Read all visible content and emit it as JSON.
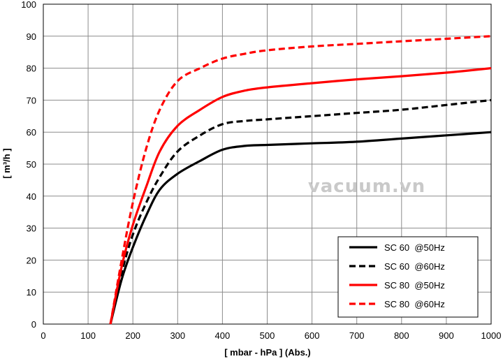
{
  "chart_data": {
    "type": "line",
    "xlabel": "[ mbar - hPa ]  (Abs.)",
    "ylabel": "[ m³/h ]",
    "xlim": [
      0,
      1000
    ],
    "ylim": [
      0,
      100
    ],
    "x_ticks": [
      0,
      100,
      200,
      300,
      400,
      500,
      600,
      700,
      800,
      900,
      1000
    ],
    "y_ticks": [
      0,
      10,
      20,
      30,
      40,
      50,
      60,
      70,
      80,
      90,
      100
    ],
    "grid": true,
    "legend_position": "bottom-right",
    "series": [
      {
        "name": "SC 60  @50Hz",
        "color": "#000000",
        "dash": "solid",
        "points": [
          [
            150,
            0
          ],
          [
            175,
            14
          ],
          [
            200,
            24
          ],
          [
            230,
            34
          ],
          [
            260,
            42
          ],
          [
            300,
            47
          ],
          [
            350,
            51
          ],
          [
            400,
            54.5
          ],
          [
            450,
            55.7
          ],
          [
            500,
            56
          ],
          [
            600,
            56.5
          ],
          [
            700,
            57
          ],
          [
            800,
            58
          ],
          [
            900,
            59
          ],
          [
            1000,
            60
          ]
        ]
      },
      {
        "name": "SC 60  @60Hz",
        "color": "#000000",
        "dash": "dashed",
        "points": [
          [
            150,
            0
          ],
          [
            175,
            16
          ],
          [
            200,
            28
          ],
          [
            230,
            38
          ],
          [
            260,
            46
          ],
          [
            300,
            54
          ],
          [
            350,
            59
          ],
          [
            400,
            62.5
          ],
          [
            450,
            63.5
          ],
          [
            500,
            64
          ],
          [
            600,
            65
          ],
          [
            700,
            66
          ],
          [
            800,
            67
          ],
          [
            900,
            68.5
          ],
          [
            1000,
            70
          ]
        ]
      },
      {
        "name": "SC 80  @50Hz",
        "color": "#ff0000",
        "dash": "solid",
        "points": [
          [
            150,
            0
          ],
          [
            175,
            18
          ],
          [
            200,
            31
          ],
          [
            230,
            43
          ],
          [
            260,
            54
          ],
          [
            300,
            62
          ],
          [
            350,
            67
          ],
          [
            400,
            71
          ],
          [
            450,
            73
          ],
          [
            500,
            74
          ],
          [
            600,
            75.3
          ],
          [
            700,
            76.5
          ],
          [
            800,
            77.5
          ],
          [
            900,
            78.6
          ],
          [
            1000,
            80
          ]
        ]
      },
      {
        "name": "SC 80  @60Hz",
        "color": "#ff0000",
        "dash": "dashed",
        "points": [
          [
            150,
            0
          ],
          [
            175,
            20
          ],
          [
            200,
            38
          ],
          [
            230,
            55
          ],
          [
            260,
            67
          ],
          [
            300,
            76
          ],
          [
            350,
            80
          ],
          [
            400,
            83
          ],
          [
            450,
            84.5
          ],
          [
            500,
            85.6
          ],
          [
            600,
            86.8
          ],
          [
            700,
            87.6
          ],
          [
            800,
            88.4
          ],
          [
            900,
            89.2
          ],
          [
            1000,
            90
          ]
        ]
      }
    ]
  },
  "watermark": "vacuum.vn"
}
